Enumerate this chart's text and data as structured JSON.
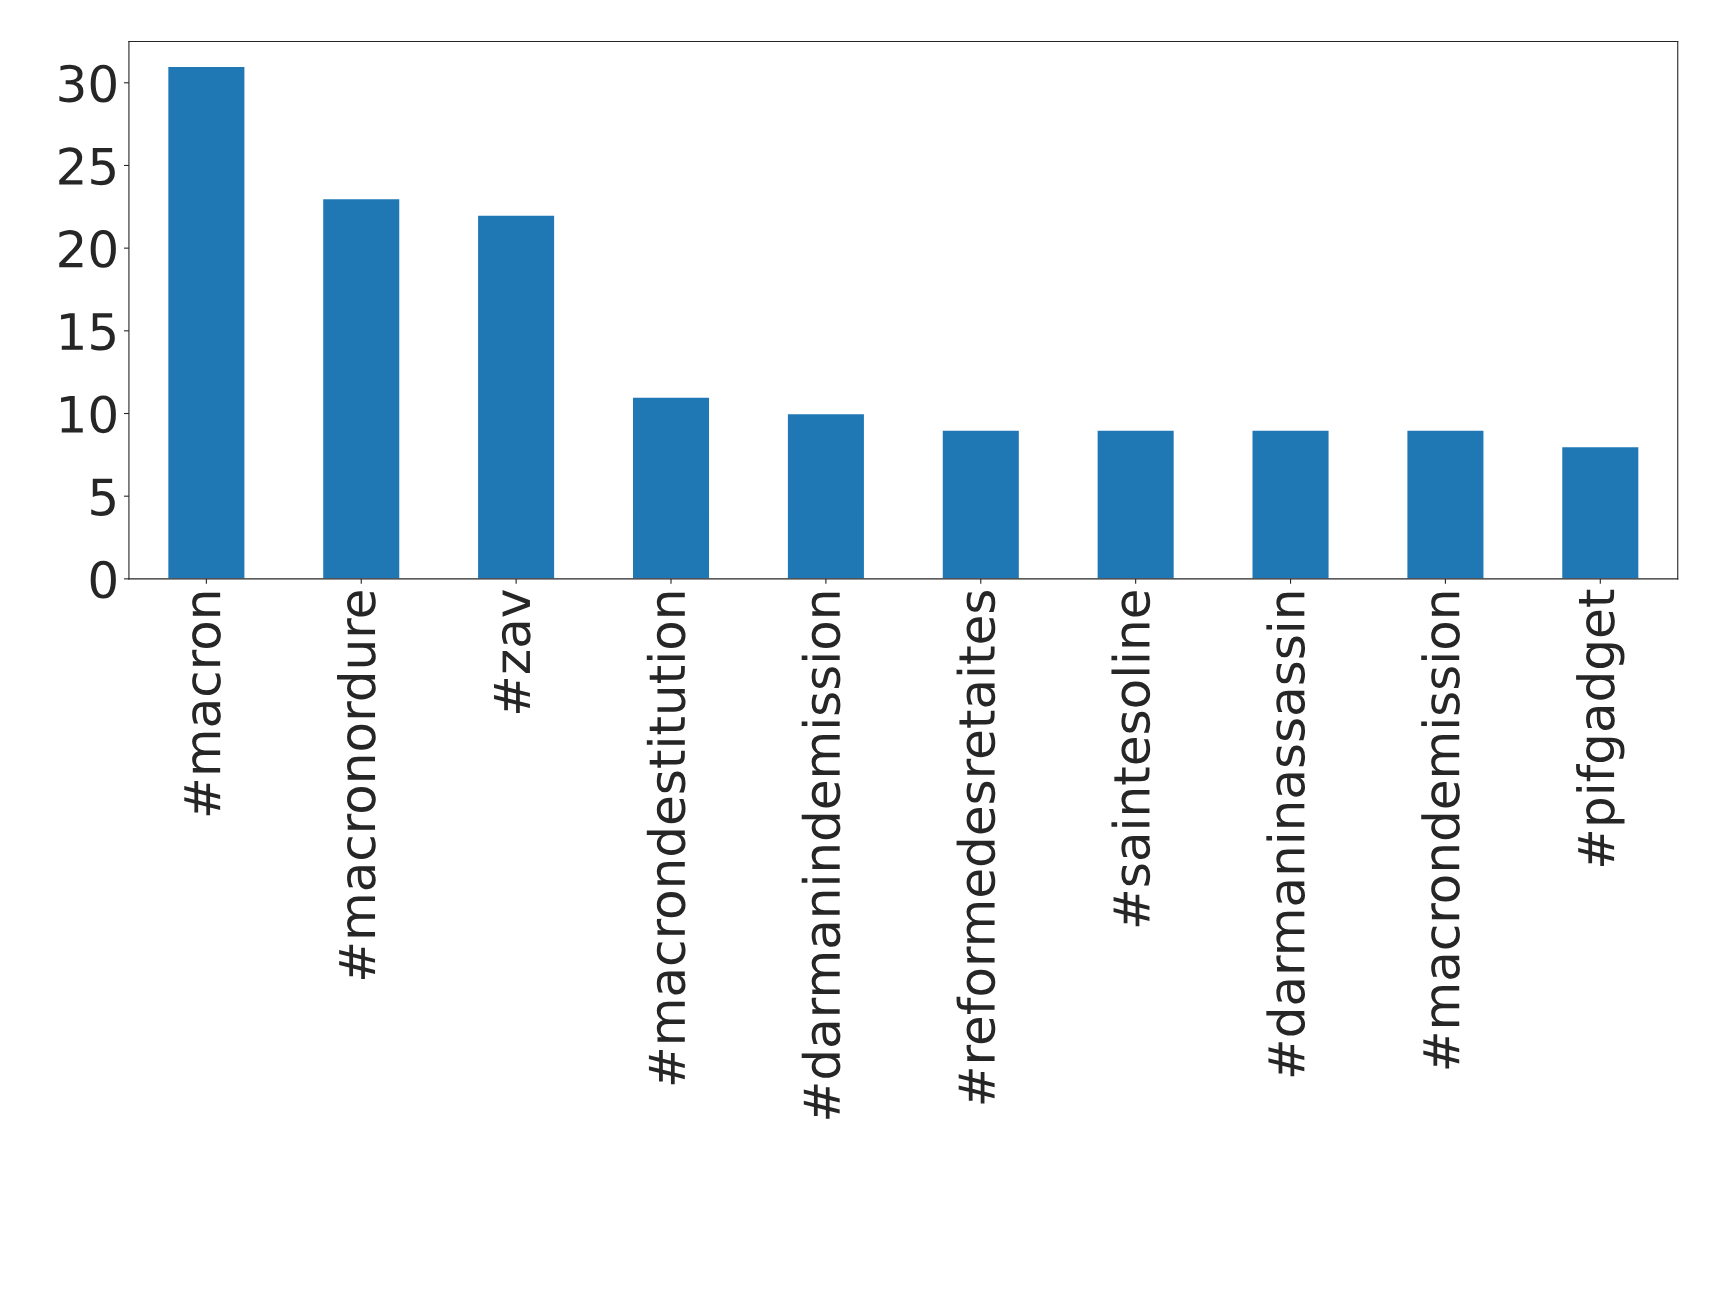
{
  "chart_data": {
    "type": "bar",
    "categories": [
      "#macron",
      "#macronordure",
      "#zav",
      "#macrondestitution",
      "#darmanindemission",
      "#reformedesretaites",
      "#saintesoline",
      "#darmaninassassin",
      "#macrondemission",
      "#pifgadget"
    ],
    "values": [
      31,
      23,
      22,
      11,
      10,
      9,
      9,
      9,
      9,
      8
    ],
    "color": "#1f77b4",
    "ylim": [
      0,
      32.5
    ],
    "yticks": [
      0,
      5,
      10,
      15,
      20,
      25,
      30
    ],
    "grid": false,
    "legend": false
  }
}
